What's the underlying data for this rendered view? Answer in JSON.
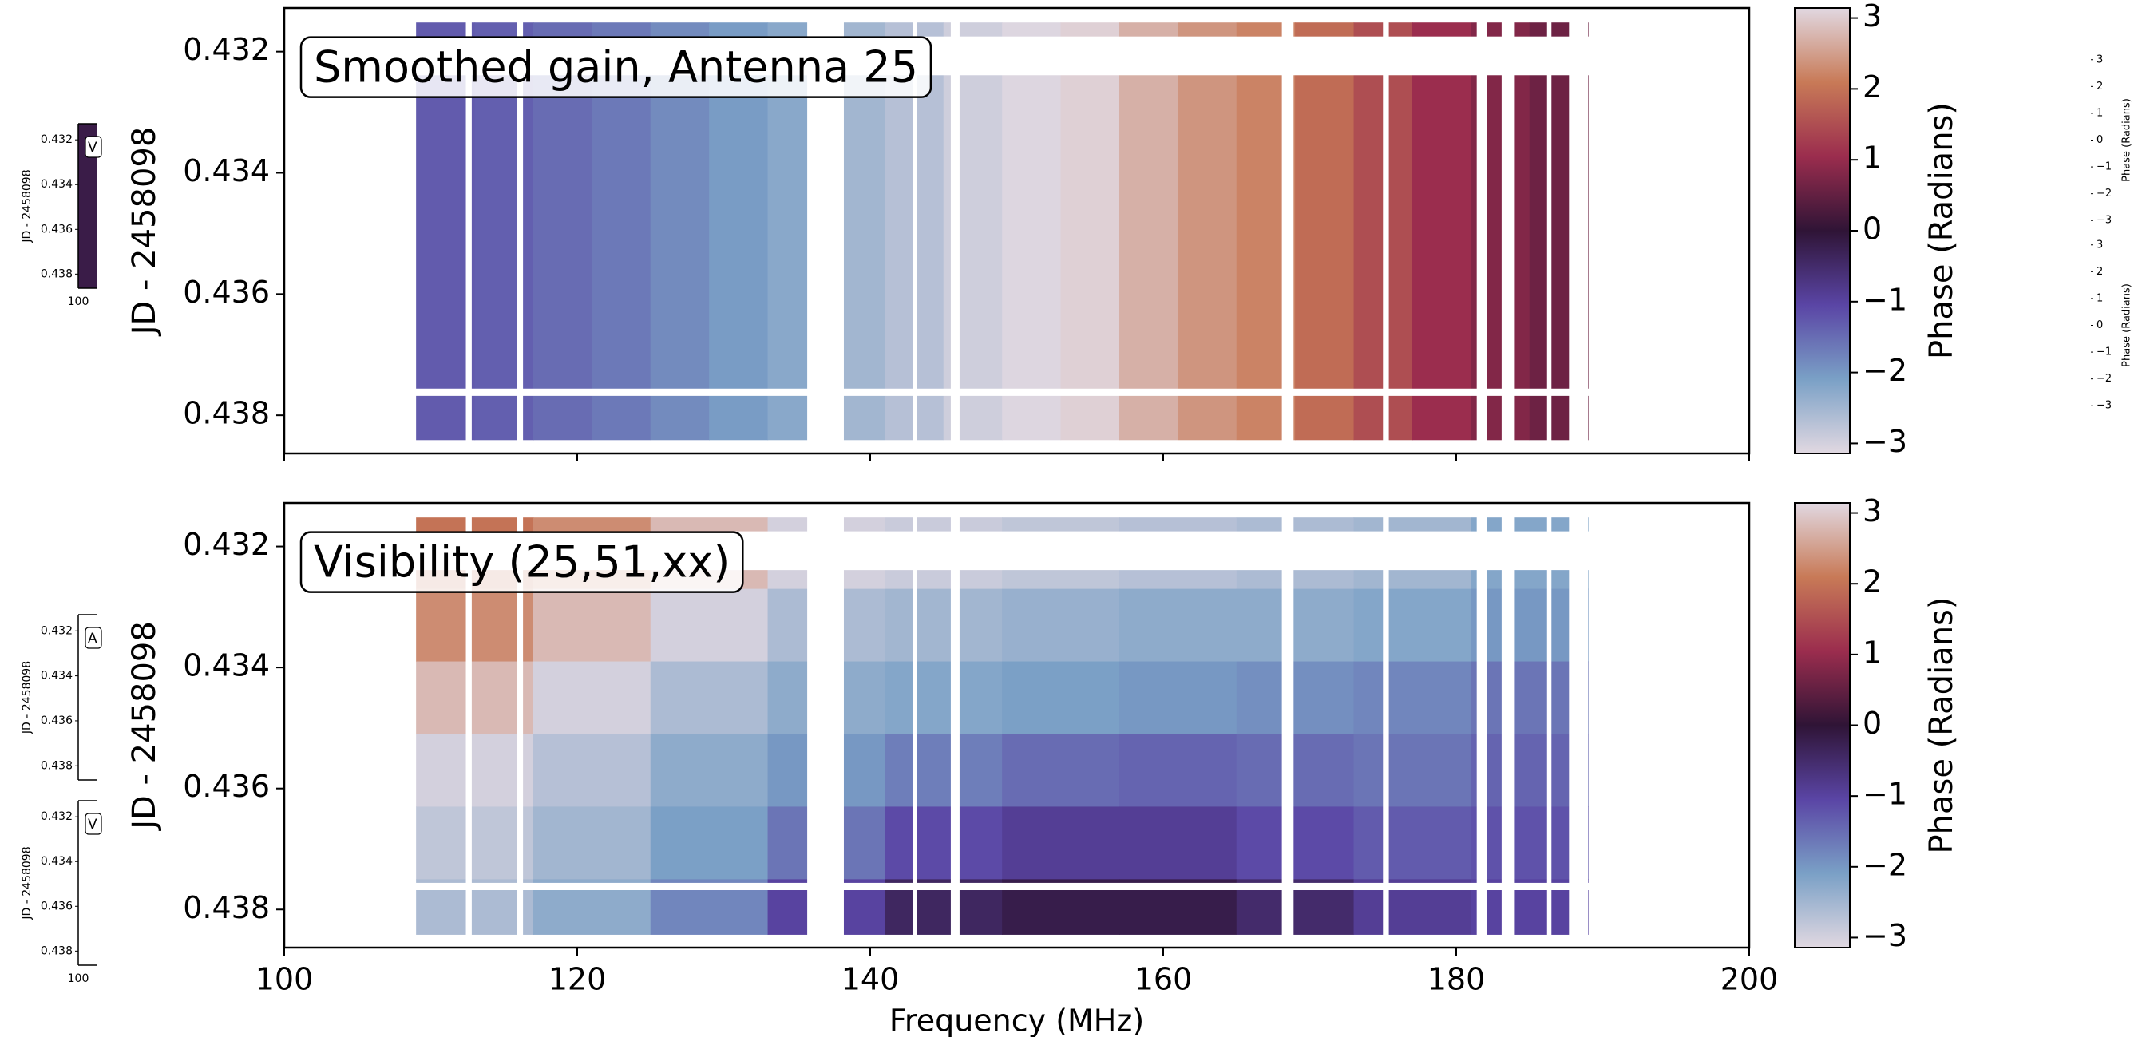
{
  "chart_data": [
    {
      "type": "gain-heatmap",
      "title": "Smoothed gain, Antenna 25",
      "ylabel": "JD - 2458098",
      "xlim": [
        100,
        200
      ],
      "xticks": [
        100,
        120,
        140,
        160,
        180,
        200
      ],
      "xtick_labels": false,
      "ylim": [
        0.43128,
        0.43863
      ],
      "y_inverted": true,
      "yticks": [
        0.432,
        0.434,
        0.436,
        0.438
      ],
      "colormap": [
        "#e1d8e1",
        "#7aa0c6",
        "#5a45a5",
        "#2f1436",
        "#9b2d4e",
        "#c87a57",
        "#e1d8e1"
      ],
      "clim": [
        -3.1416,
        3.1416
      ],
      "colorbar_label": "Phase (Radians)",
      "cticks": [
        {
          "value": 3,
          "label": "3"
        },
        {
          "value": 2,
          "label": "2"
        },
        {
          "value": 1,
          "label": "1"
        },
        {
          "value": 0,
          "label": "0"
        },
        {
          "value": -1,
          "label": "−1"
        },
        {
          "value": -2,
          "label": "−2"
        },
        {
          "value": -3,
          "label": "−3"
        }
      ],
      "time_range": [
        0.43152,
        0.43841
      ],
      "x_edges": [
        109,
        113,
        117,
        121,
        125,
        129,
        133,
        137,
        141,
        145,
        149,
        153,
        157,
        161,
        165,
        169,
        173,
        177,
        181,
        185,
        189
      ],
      "values": [
        -1.3,
        -1.35,
        -1.5,
        -1.65,
        -1.85,
        -2.05,
        -2.25,
        -2.5,
        -2.7,
        -2.95,
        -3.1,
        3.05,
        2.7,
        2.4,
        2.2,
        1.9,
        1.5,
        1.05,
        0.8,
        0.6
      ],
      "masked_x": [
        [
          112.4,
          112.8
        ],
        [
          115.9,
          116.3
        ],
        [
          135.7,
          138.2
        ],
        [
          142.9,
          143.2
        ],
        [
          145.5,
          146.1
        ],
        [
          168.1,
          168.9
        ],
        [
          175.0,
          175.4
        ],
        [
          181.4,
          182.1
        ],
        [
          183.1,
          184.0
        ],
        [
          186.2,
          186.5
        ],
        [
          187.7,
          189
        ]
      ],
      "masked_y": [
        [
          0.43175,
          0.43239
        ],
        [
          0.43756,
          0.43768
        ]
      ]
    },
    {
      "type": "vis-heatmap",
      "title": "Visibility (25,51,xx)",
      "ylabel": "JD - 2458098",
      "xlabel": "Frequency (MHz)",
      "xlim": [
        100,
        200
      ],
      "xticks": [
        100,
        120,
        140,
        160,
        180,
        200
      ],
      "xtick_labels": true,
      "ylim": [
        0.43128,
        0.43863
      ],
      "y_inverted": true,
      "yticks": [
        0.432,
        0.434,
        0.436,
        0.438
      ],
      "colormap": [
        "#e1d8e1",
        "#7aa0c6",
        "#5a45a5",
        "#2f1436",
        "#9b2d4e",
        "#c87a57",
        "#e1d8e1"
      ],
      "clim": [
        -3.1416,
        3.1416
      ],
      "colorbar_label": "Phase (Radians)",
      "cticks": [
        {
          "value": 3,
          "label": "3"
        },
        {
          "value": 2,
          "label": "2"
        },
        {
          "value": 1,
          "label": "1"
        },
        {
          "value": 0,
          "label": "0"
        },
        {
          "value": -1,
          "label": "−1"
        },
        {
          "value": -2,
          "label": "−2"
        },
        {
          "value": -3,
          "label": "−3"
        }
      ],
      "x_edges": [
        109,
        117,
        125,
        133,
        141,
        149,
        157,
        165,
        173,
        181,
        189
      ],
      "y_edges": [
        0.43152,
        0.4327,
        0.4339,
        0.4351,
        0.4363,
        0.4375,
        0.43841
      ],
      "z": [
        [
          2.0,
          2.3,
          2.8,
          -3.0,
          -2.9,
          -2.8,
          -2.7,
          -2.6,
          -2.5,
          -2.2
        ],
        [
          2.3,
          2.8,
          -3.0,
          -2.6,
          -2.5,
          -2.4,
          -2.3,
          -2.3,
          -2.2,
          -2.0
        ],
        [
          2.8,
          -3.0,
          -2.6,
          -2.3,
          -2.2,
          -2.1,
          -2.0,
          -1.9,
          -1.8,
          -1.6
        ],
        [
          -3.0,
          -2.7,
          -2.3,
          -2.0,
          -1.7,
          -1.5,
          -1.4,
          -1.5,
          -1.6,
          -1.4
        ],
        [
          -2.8,
          -2.5,
          -2.1,
          -1.6,
          -1.1,
          -0.9,
          -0.9,
          -1.1,
          -1.3,
          -1.2
        ],
        [
          -2.6,
          -2.3,
          -1.8,
          -1.0,
          -0.4,
          -0.2,
          -0.2,
          -0.5,
          -0.9,
          -1.0
        ]
      ],
      "masked_x": [
        [
          112.4,
          112.8
        ],
        [
          115.9,
          116.3
        ],
        [
          135.7,
          138.2
        ],
        [
          142.9,
          143.2
        ],
        [
          145.5,
          146.1
        ],
        [
          168.1,
          168.9
        ],
        [
          175.0,
          175.4
        ],
        [
          181.4,
          182.1
        ],
        [
          183.1,
          184.0
        ],
        [
          186.2,
          186.5
        ],
        [
          187.7,
          189
        ]
      ],
      "masked_y": [
        [
          0.43175,
          0.43239
        ],
        [
          0.43756,
          0.43768
        ]
      ]
    },
    {
      "type": "thumbnail",
      "title": "V",
      "ylabel": "JD - 2458098",
      "ylim": [
        0.43128,
        0.43863
      ],
      "yticks": [
        0.432,
        0.434,
        0.436,
        0.438
      ],
      "xticks": [
        100
      ],
      "filled": true
    },
    {
      "type": "thumbnail",
      "title": "A",
      "ylabel": "JD - 2458098",
      "ylim": [
        0.43128,
        0.43863
      ],
      "yticks": [
        0.432,
        0.434,
        0.436,
        0.438
      ],
      "xticks": [],
      "filled": false
    },
    {
      "type": "thumbnail",
      "title": "V",
      "ylabel": "JD - 2458098",
      "ylim": [
        0.43128,
        0.43863
      ],
      "yticks": [
        0.432,
        0.434,
        0.436,
        0.438
      ],
      "xticks": [
        100
      ],
      "filled": false
    },
    {
      "type": "colorbar-thumb",
      "label": "Phase (Radians)",
      "clim": [
        -3.1416,
        3.1416
      ],
      "cticks": [
        {
          "value": 3,
          "label": "3"
        },
        {
          "value": 2,
          "label": "2"
        },
        {
          "value": 1,
          "label": "1"
        },
        {
          "value": 0,
          "label": "0"
        },
        {
          "value": -1,
          "label": "−1"
        },
        {
          "value": -2,
          "label": "−2"
        },
        {
          "value": -3,
          "label": "−3"
        }
      ]
    },
    {
      "type": "colorbar-thumb",
      "label": "Phase (Radians)",
      "clim": [
        -3.1416,
        3.1416
      ],
      "cticks": [
        {
          "value": 3,
          "label": "3"
        },
        {
          "value": 2,
          "label": "2"
        },
        {
          "value": 1,
          "label": "1"
        },
        {
          "value": 0,
          "label": "0"
        },
        {
          "value": -1,
          "label": "−1"
        },
        {
          "value": -2,
          "label": "−2"
        },
        {
          "value": -3,
          "label": "−3"
        }
      ]
    }
  ]
}
